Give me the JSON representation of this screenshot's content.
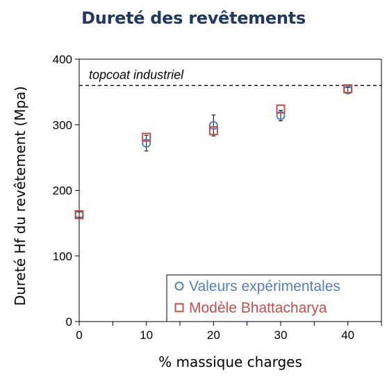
{
  "chart_data": {
    "type": "scatter",
    "title": "Dureté des revêtements",
    "xlabel": "% massique charges",
    "ylabel": "Dureté Hf du revêtement (Mpa)",
    "xlim": [
      0,
      45
    ],
    "ylim": [
      0,
      400
    ],
    "xticks": [
      0,
      10,
      20,
      30,
      40
    ],
    "yticks": [
      0,
      100,
      200,
      300,
      400
    ],
    "legend_position": "bottom-right",
    "series": [
      {
        "name": "Valeurs expérimentales",
        "marker": "circle",
        "color": "#4f81bd",
        "x": [
          0,
          10,
          20,
          30,
          40
        ],
        "y": [
          163,
          272,
          299,
          314,
          353
        ],
        "yerr": [
          4,
          12,
          16,
          8,
          4
        ]
      },
      {
        "name": "Modèle Bhattacharya",
        "marker": "square",
        "color": "#c0504d",
        "x": [
          0,
          10,
          20,
          30,
          40
        ],
        "y": [
          163,
          281,
          291,
          324,
          355
        ]
      }
    ],
    "reference_line": {
      "label": "topcoat industriel",
      "y": 360,
      "style": "dashed"
    }
  }
}
